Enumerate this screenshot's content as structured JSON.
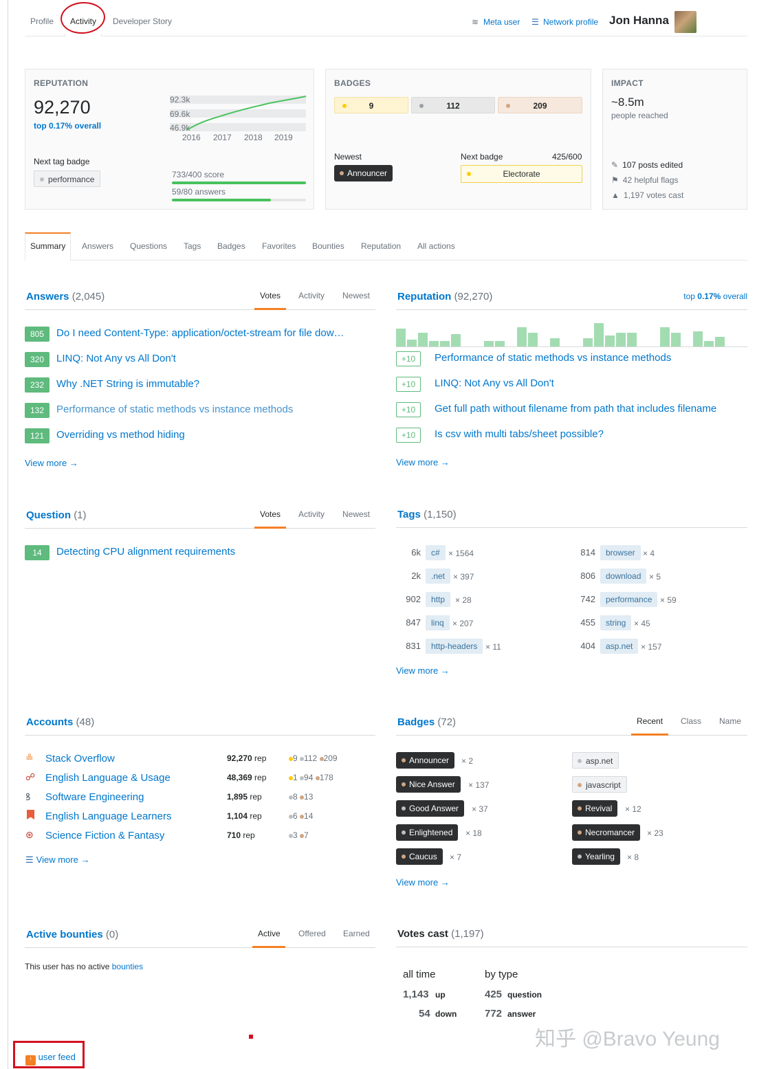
{
  "topnav": {
    "tabs": [
      "Profile",
      "Activity",
      "Developer Story"
    ],
    "meta_user": "Meta user",
    "network_profile": "Network profile",
    "username": "Jon Hanna"
  },
  "reputation_card": {
    "heading": "REPUTATION",
    "value": "92,270",
    "rank": "top 0.17% overall",
    "graph_labels": [
      "92.3k",
      "69.6k",
      "46.9k"
    ],
    "graph_years": [
      "2016",
      "2017",
      "2018",
      "2019"
    ],
    "next_tag_badge_label": "Next tag badge",
    "next_tag_badge": "performance",
    "score_progress": "733/400 score",
    "score_fraction": 1.0,
    "answers_progress": "59/80 answers",
    "answers_fraction": 0.7375
  },
  "badges_card": {
    "heading": "BADGES",
    "gold": "9",
    "silver": "112",
    "bronze": "209",
    "newest_label": "Newest",
    "newest": "Announcer",
    "next_badge_label": "Next badge",
    "next_badge_progress": "425/600",
    "next_badge": "Electorate",
    "colors": {
      "gold_bg": "#fff4d1",
      "silver_bg": "#e8e8e8",
      "bronze_bg": "#f6e8dc"
    }
  },
  "impact_card": {
    "heading": "IMPACT",
    "reached": "~8.5m",
    "reached_label": "people reached",
    "posts_edited": "107 posts edited",
    "helpful_flags": "42 helpful flags",
    "votes_cast": "1,197 votes cast"
  },
  "subnav": {
    "tabs": [
      "Summary",
      "Answers",
      "Questions",
      "Tags",
      "Badges",
      "Favorites",
      "Bounties",
      "Reputation",
      "All actions"
    ]
  },
  "answers": {
    "title": "Answers",
    "count": "(2,045)",
    "tabs": [
      "Votes",
      "Activity",
      "Newest"
    ],
    "items": [
      {
        "score": "805",
        "title": "Do I need Content-Type: application/octet-stream for file dow…"
      },
      {
        "score": "320",
        "title": "LINQ: Not Any vs All Don't"
      },
      {
        "score": "232",
        "title": "Why .NET String is immutable?"
      },
      {
        "score": "132",
        "title": "Performance of static methods vs instance methods"
      },
      {
        "score": "121",
        "title": "Overriding vs method hiding"
      }
    ],
    "view_more": "View more →"
  },
  "reputation": {
    "title": "Reputation",
    "count": "(92,270)",
    "rank_prefix": "top ",
    "rank_value": "0.17%",
    "rank_suffix": " overall",
    "items": [
      {
        "delta": "+10",
        "title": "Performance of static methods vs instance methods"
      },
      {
        "delta": "+10",
        "title": "LINQ: Not Any vs All Don't"
      },
      {
        "delta": "+10",
        "title": "Get full path without filename from path that includes filename"
      },
      {
        "delta": "+10",
        "title": "Is csv with multi tabs/sheet possible?"
      }
    ],
    "view_more": "View more →"
  },
  "questions": {
    "title": "Question",
    "count": "(1)",
    "tabs": [
      "Votes",
      "Activity",
      "Newest"
    ],
    "items": [
      {
        "score": "14",
        "title": "Detecting CPU alignment requirements"
      }
    ]
  },
  "tags": {
    "title": "Tags",
    "count": "(1,150)",
    "left": [
      {
        "score": "6k",
        "tag": "c#",
        "posts": "× 1564"
      },
      {
        "score": "2k",
        "tag": ".net",
        "posts": "× 397"
      },
      {
        "score": "902",
        "tag": "http",
        "posts": "× 28"
      },
      {
        "score": "847",
        "tag": "linq",
        "posts": "× 207"
      },
      {
        "score": "831",
        "tag": "http-headers",
        "posts": "× 11"
      }
    ],
    "right": [
      {
        "score": "814",
        "tag": "browser",
        "posts": "× 4"
      },
      {
        "score": "806",
        "tag": "download",
        "posts": "× 5"
      },
      {
        "score": "742",
        "tag": "performance",
        "posts": "× 59"
      },
      {
        "score": "455",
        "tag": "string",
        "posts": "× 45"
      },
      {
        "score": "404",
        "tag": "asp.net",
        "posts": "× 157"
      }
    ],
    "view_more": "View more →"
  },
  "accounts": {
    "title": "Accounts",
    "count": "(48)",
    "items": [
      {
        "icon": "stackoverflow-icon",
        "site": "Stack Overflow",
        "rep": "92,270",
        "gold": "9",
        "silver": "112",
        "bronze": "209"
      },
      {
        "icon": "english-icon",
        "site": "English Language & Usage",
        "rep": "48,369",
        "gold": "1",
        "silver": "94",
        "bronze": "178"
      },
      {
        "icon": "softwareengineering-icon",
        "site": "Software Engineering",
        "rep": "1,895",
        "gold": "",
        "silver": "8",
        "bronze": "13"
      },
      {
        "icon": "ell-icon",
        "site": "English Language Learners",
        "rep": "1,104",
        "gold": "",
        "silver": "6",
        "bronze": "14"
      },
      {
        "icon": "scifi-icon",
        "site": "Science Fiction & Fantasy",
        "rep": "710",
        "gold": "",
        "silver": "3",
        "bronze": "7"
      }
    ],
    "rep_label": "rep",
    "view_more": "View more →"
  },
  "badges": {
    "title": "Badges",
    "count": "(72)",
    "tabs": [
      "Recent",
      "Class",
      "Name"
    ],
    "left": [
      {
        "name": "Announcer",
        "times": "× 2"
      },
      {
        "name": "Nice Answer",
        "times": "× 137"
      },
      {
        "name": "Good Answer",
        "times": "× 37"
      },
      {
        "name": "Enlightened",
        "times": "× 18"
      },
      {
        "name": "Caucus",
        "times": "× 7"
      }
    ],
    "right": [
      {
        "name": "asp.net",
        "times": ""
      },
      {
        "name": "javascript",
        "times": ""
      },
      {
        "name": "Revival",
        "times": "× 12"
      },
      {
        "name": "Necromancer",
        "times": "× 23"
      },
      {
        "name": "Yearling",
        "times": "× 8"
      }
    ],
    "view_more": "View more →"
  },
  "bounties": {
    "title": "Active bounties",
    "count": "(0)",
    "tabs": [
      "Active",
      "Offered",
      "Earned"
    ],
    "empty_prefix": "This user has no active ",
    "empty_link": "bounties"
  },
  "votes": {
    "title": "Votes cast",
    "count": "(1,197)",
    "all_time_label": "all time",
    "by_type_label": "by type",
    "up_value": "1,143",
    "up_label": "up",
    "down_value": "54",
    "down_label": "down",
    "question_value": "425",
    "question_label": "question",
    "answer_value": "772",
    "answer_label": "answer"
  },
  "footer": {
    "user_feed": "user feed",
    "watermark": "知乎 @Bravo Yeung"
  }
}
